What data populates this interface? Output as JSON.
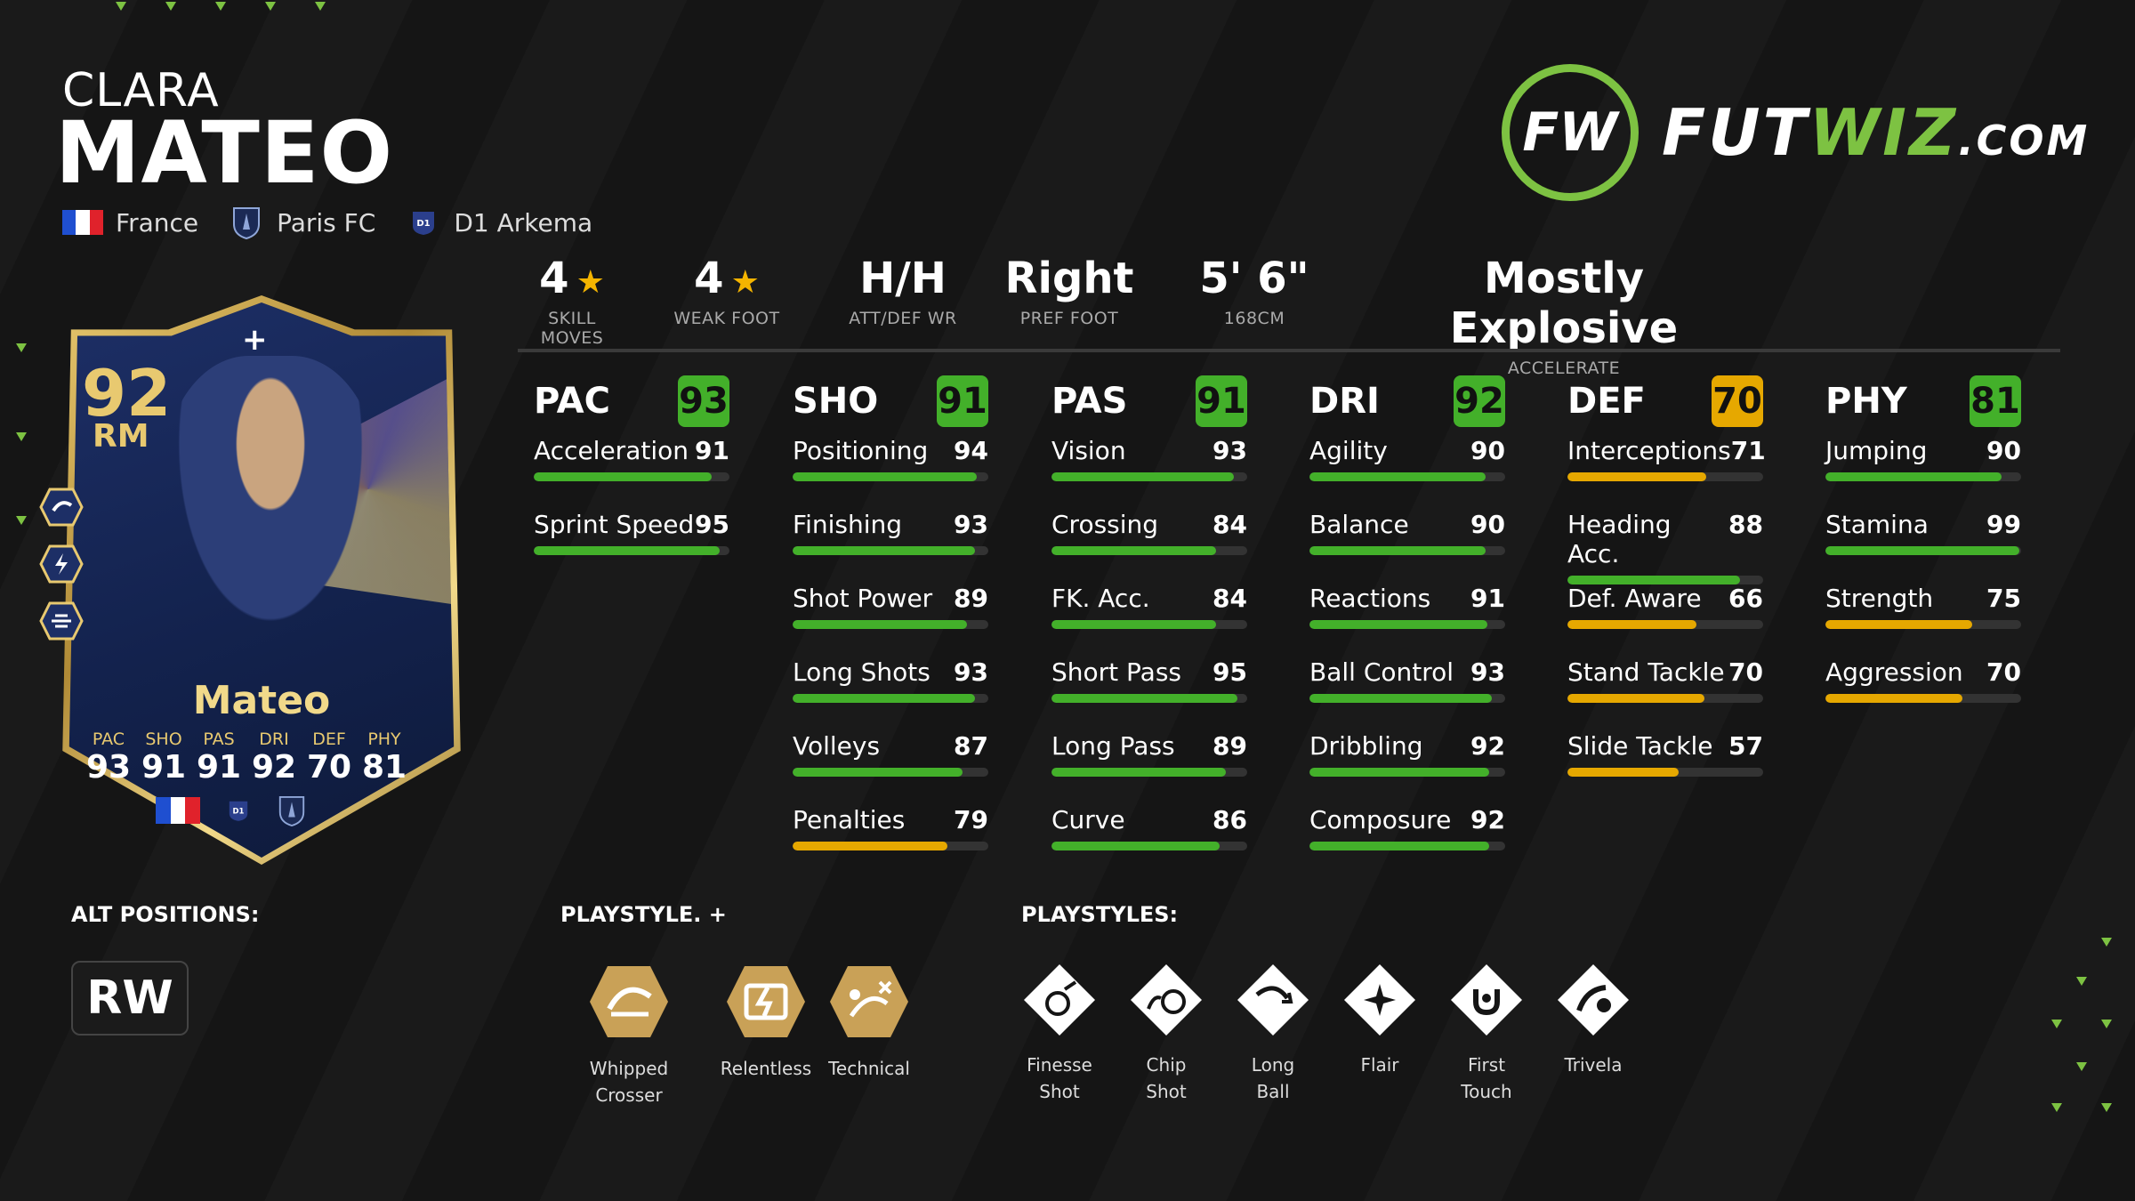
{
  "player": {
    "first_name": "CLARA",
    "last_name": "MATEO",
    "nation": "France",
    "club": "Paris FC",
    "league": "D1 Arkema"
  },
  "logo": {
    "text_a": "FUT",
    "text_b": "WIZ",
    "text_c": ".COM",
    "ring_text": "FW",
    "accent_color": "#7dc242"
  },
  "info": {
    "skill_moves": {
      "value": "4",
      "label": "SKILL MOVES"
    },
    "weak_foot": {
      "value": "4",
      "label": "WEAK FOOT"
    },
    "work_rate": {
      "value": "H/H",
      "label": "ATT/DEF WR"
    },
    "pref_foot": {
      "value": "Right",
      "label": "PREF FOOT"
    },
    "height": {
      "value": "5' 6\"",
      "label": "168CM"
    },
    "accelerate": {
      "value": "Mostly Explosive",
      "label": "ACCELERATE"
    }
  },
  "stats": [
    {
      "name": "PAC",
      "value": 93,
      "color": "#43b02a",
      "rows": [
        {
          "label": "Acceleration",
          "value": 91
        },
        {
          "label": "Sprint Speed",
          "value": 95
        }
      ]
    },
    {
      "name": "SHO",
      "value": 91,
      "color": "#43b02a",
      "rows": [
        {
          "label": "Positioning",
          "value": 94
        },
        {
          "label": "Finishing",
          "value": 93
        },
        {
          "label": "Shot Power",
          "value": 89
        },
        {
          "label": "Long Shots",
          "value": 93
        },
        {
          "label": "Volleys",
          "value": 87
        },
        {
          "label": "Penalties",
          "value": 79
        }
      ]
    },
    {
      "name": "PAS",
      "value": 91,
      "color": "#43b02a",
      "rows": [
        {
          "label": "Vision",
          "value": 93
        },
        {
          "label": "Crossing",
          "value": 84
        },
        {
          "label": "FK. Acc.",
          "value": 84
        },
        {
          "label": "Short Pass",
          "value": 95
        },
        {
          "label": "Long Pass",
          "value": 89
        },
        {
          "label": "Curve",
          "value": 86
        }
      ]
    },
    {
      "name": "DRI",
      "value": 92,
      "color": "#43b02a",
      "rows": [
        {
          "label": "Agility",
          "value": 90
        },
        {
          "label": "Balance",
          "value": 90
        },
        {
          "label": "Reactions",
          "value": 91
        },
        {
          "label": "Ball Control",
          "value": 93
        },
        {
          "label": "Dribbling",
          "value": 92
        },
        {
          "label": "Composure",
          "value": 92
        }
      ]
    },
    {
      "name": "DEF",
      "value": 70,
      "color": "#e6a800",
      "rows": [
        {
          "label": "Interceptions",
          "value": 71
        },
        {
          "label": "Heading Acc.",
          "value": 88
        },
        {
          "label": "Def. Aware",
          "value": 66
        },
        {
          "label": "Stand Tackle",
          "value": 70
        },
        {
          "label": "Slide Tackle",
          "value": 57
        }
      ]
    },
    {
      "name": "PHY",
      "value": 81,
      "color": "#43b02a",
      "rows": [
        {
          "label": "Jumping",
          "value": 90
        },
        {
          "label": "Stamina",
          "value": 99
        },
        {
          "label": "Strength",
          "value": 75
        },
        {
          "label": "Aggression",
          "value": 70
        }
      ]
    }
  ],
  "card": {
    "rating": "92",
    "position": "RM",
    "name": "Mateo",
    "labels": [
      "PAC",
      "SHO",
      "PAS",
      "DRI",
      "DEF",
      "PHY"
    ],
    "values": [
      "93",
      "91",
      "91",
      "92",
      "70",
      "81"
    ]
  },
  "sections": {
    "alt_positions": "ALT POSITIONS:",
    "playstyle_plus": "PLAYSTYLE. +",
    "playstyles": "PLAYSTYLES:"
  },
  "alt_positions": [
    "RW"
  ],
  "playstyle_plus": [
    {
      "label": "Whipped Crosser",
      "icon": "whipped-crosser-icon"
    },
    {
      "label": "Relentless",
      "icon": "relentless-icon"
    },
    {
      "label": "Technical",
      "icon": "technical-icon"
    }
  ],
  "playstyles": [
    {
      "line1": "Finesse",
      "line2": "Shot",
      "icon": "finesse-shot-icon"
    },
    {
      "line1": "Chip",
      "line2": "Shot",
      "icon": "chip-shot-icon"
    },
    {
      "line1": "Long",
      "line2": "Ball",
      "icon": "long-ball-icon"
    },
    {
      "line1": "Flair",
      "line2": "",
      "icon": "flair-icon"
    },
    {
      "line1": "First",
      "line2": "Touch",
      "icon": "first-touch-icon"
    },
    {
      "line1": "Trivela",
      "line2": "",
      "icon": "trivela-icon"
    }
  ],
  "colors": {
    "green": "#43b02a",
    "amber": "#e6a800",
    "gold": "#e8c970"
  }
}
